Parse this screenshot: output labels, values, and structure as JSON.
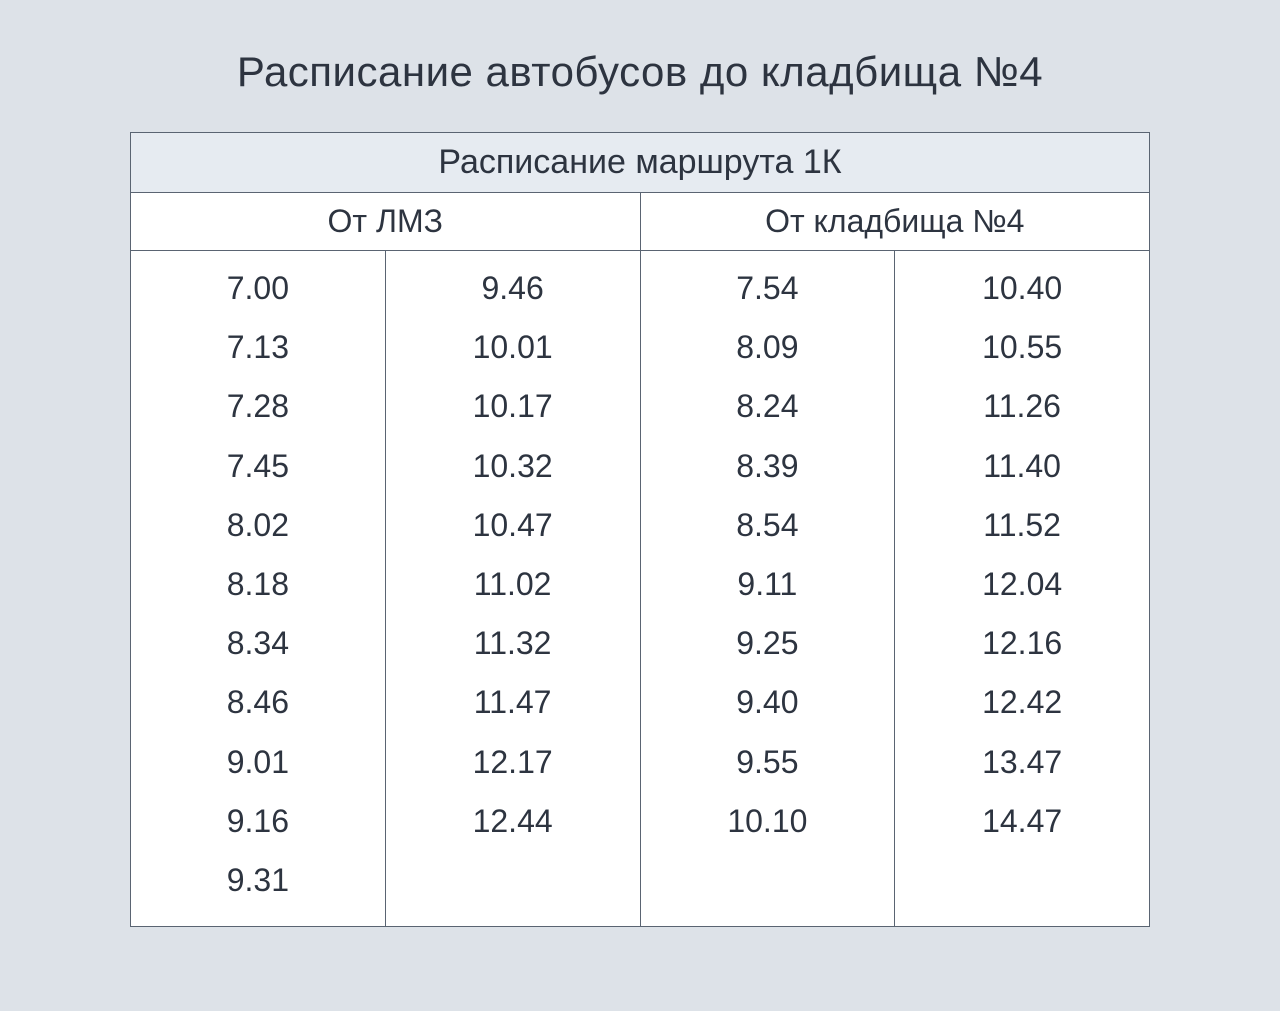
{
  "title": "Расписание автобусов до кладбища №4",
  "table": {
    "header": "Расписание маршрута 1К",
    "subheaders": {
      "left": "От ЛМЗ",
      "right": "От кладбища №4"
    },
    "columns": {
      "col1": [
        "7.00",
        "7.13",
        "7.28",
        "7.45",
        "8.02",
        "8.18",
        "8.34",
        "8.46",
        "9.01",
        "9.16",
        "9.31"
      ],
      "col2": [
        "9.46",
        "10.01",
        "10.17",
        "10.32",
        "10.47",
        "11.02",
        "11.32",
        "11.47",
        "12.17",
        "12.44"
      ],
      "col3": [
        "7.54",
        "8.09",
        "8.24",
        "8.39",
        "8.54",
        "9.11",
        "9.25",
        "9.40",
        "9.55",
        "10.10"
      ],
      "col4": [
        "10.40",
        "10.55",
        "11.26",
        "11.40",
        "11.52",
        "12.04",
        "12.16",
        "12.42",
        "13.47",
        "14.47"
      ]
    }
  },
  "style": {
    "background_color": "#dde2e8",
    "table_background": "#ffffff",
    "header_background": "#e6ebf1",
    "border_color": "#5a6472",
    "text_color": "#2d3440",
    "title_fontsize": 42,
    "header_fontsize": 34,
    "subheader_fontsize": 32,
    "time_fontsize": 32
  }
}
